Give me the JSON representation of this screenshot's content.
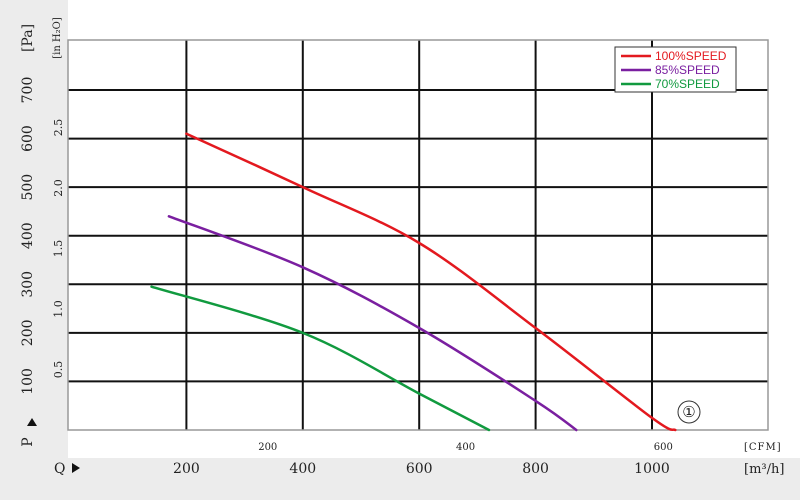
{
  "chart_data": {
    "type": "line",
    "x_axis": {
      "label_primary": "Q",
      "unit_primary": "[m³/h]",
      "range_primary": [
        0,
        1200
      ],
      "ticks_primary": [
        200,
        400,
        600,
        800,
        1000
      ],
      "unit_secondary": "[CFM]",
      "ticks_secondary": [
        200,
        400,
        600
      ]
    },
    "y_axis": {
      "label_primary": "P",
      "unit_primary": "[Pa]",
      "range_primary": [
        0,
        800
      ],
      "ticks_primary": [
        100,
        200,
        300,
        400,
        500,
        600,
        700
      ],
      "unit_secondary": "[in H₂O]",
      "ticks_secondary": [
        "0.5",
        "1.0",
        "1.5",
        "2.0",
        "2.5"
      ]
    },
    "grid": true,
    "legend_position": "top-right",
    "annotation": "①",
    "series": [
      {
        "name": "100%SPEED",
        "color": "#e3191f",
        "points": [
          [
            200,
            610
          ],
          [
            400,
            500
          ],
          [
            600,
            385
          ],
          [
            800,
            210
          ],
          [
            1000,
            25
          ],
          [
            1040,
            0
          ]
        ]
      },
      {
        "name": "85%SPEED",
        "color": "#7a1fa0",
        "points": [
          [
            170,
            440
          ],
          [
            400,
            335
          ],
          [
            600,
            210
          ],
          [
            800,
            60
          ],
          [
            870,
            0
          ]
        ]
      },
      {
        "name": "70%SPEED",
        "color": "#119a3f",
        "points": [
          [
            140,
            295
          ],
          [
            400,
            200
          ],
          [
            600,
            75
          ],
          [
            720,
            0
          ]
        ]
      }
    ]
  }
}
